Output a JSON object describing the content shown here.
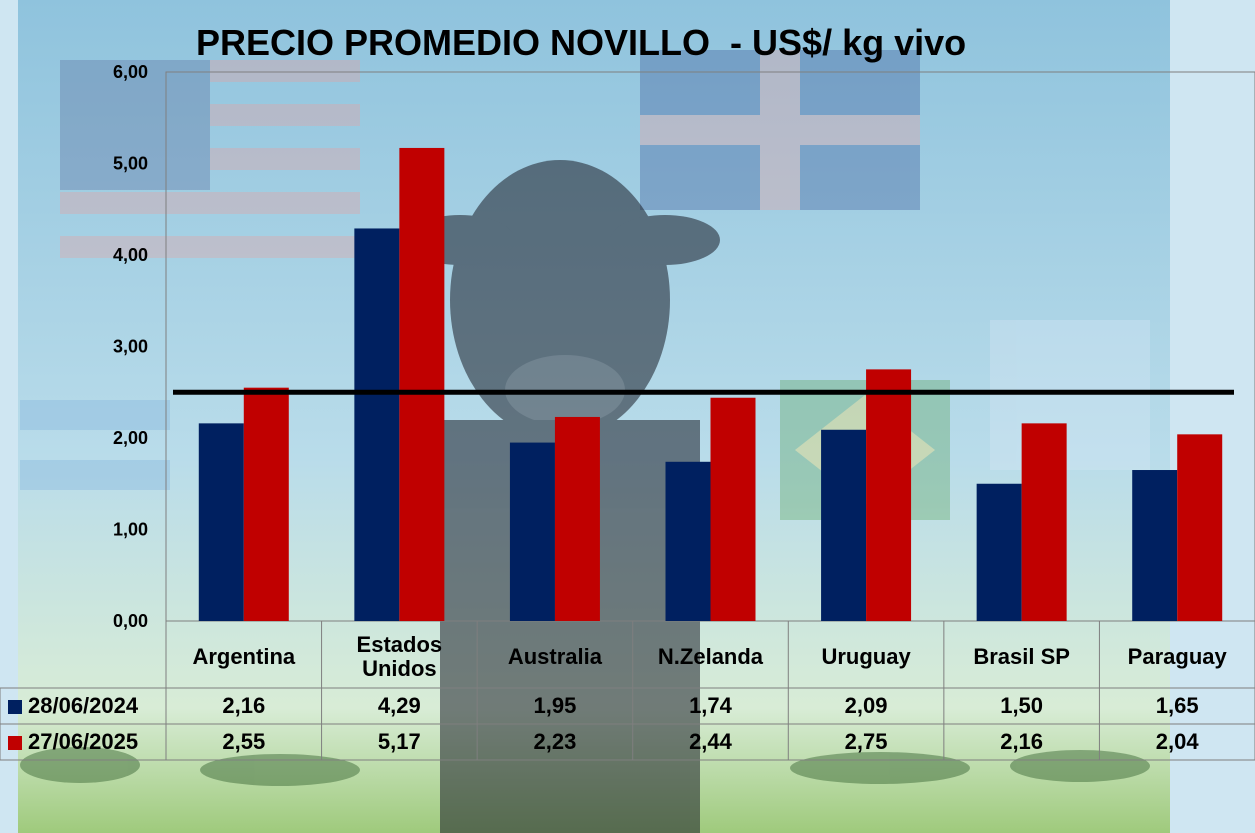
{
  "chart_data": {
    "type": "bar",
    "title": "PRECIO PROMEDIO NOVILLO  - US$/ kg vivo",
    "categories": [
      "Argentina",
      "Estados Unidos",
      "Australia",
      "N.Zelanda",
      "Uruguay",
      "Brasil SP",
      "Paraguay"
    ],
    "category_lines": [
      [
        "Argentina"
      ],
      [
        "Estados",
        "Unidos"
      ],
      [
        "Australia"
      ],
      [
        "N.Zelanda"
      ],
      [
        "Uruguay"
      ],
      [
        "Brasil SP"
      ],
      [
        "Paraguay"
      ]
    ],
    "series": [
      {
        "name": "28/06/2024",
        "color": "#002060",
        "values": [
          2.16,
          4.29,
          1.95,
          1.74,
          2.09,
          1.5,
          1.65
        ],
        "labels": [
          "2,16",
          "4,29",
          "1,95",
          "1,74",
          "2,09",
          "1,50",
          "1,65"
        ]
      },
      {
        "name": "27/06/2025",
        "color": "#c00000",
        "values": [
          2.55,
          5.17,
          2.23,
          2.44,
          2.75,
          2.16,
          2.04
        ],
        "labels": [
          "2,55",
          "5,17",
          "2,23",
          "2,44",
          "2,75",
          "2,16",
          "2,04"
        ]
      }
    ],
    "ylim": [
      0,
      6
    ],
    "yticks": [
      "0,00",
      "1,00",
      "2,00",
      "3,00",
      "4,00",
      "5,00",
      "6,00"
    ],
    "reference_line": 2.5,
    "data_table": true,
    "grid": false
  }
}
